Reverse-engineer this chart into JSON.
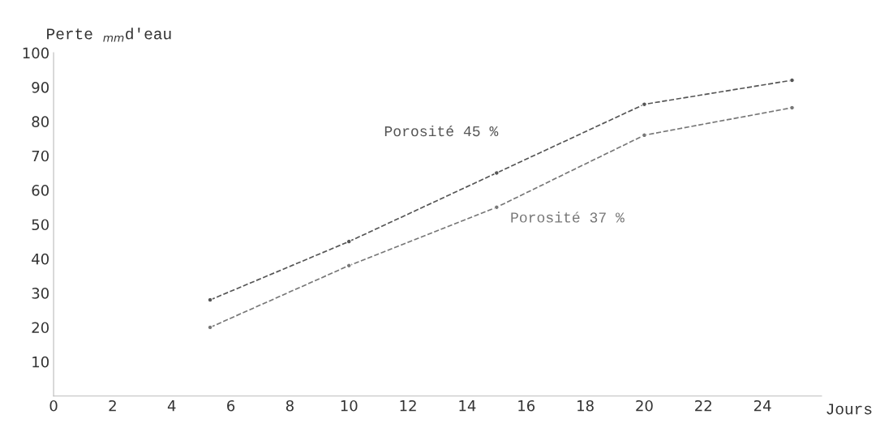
{
  "chart_data": {
    "type": "line",
    "ylabel": "Perte $_{mm}$d'eau",
    "xlabel": "Jours",
    "x": [
      5.3,
      10,
      15,
      20,
      25
    ],
    "series": [
      {
        "name": "Porosité 45 %",
        "color": "#555555",
        "values": [
          28,
          45,
          65,
          85,
          92
        ]
      },
      {
        "name": "Porosité 37 %",
        "color": "#777777",
        "values": [
          20,
          38,
          55,
          76,
          84
        ]
      }
    ],
    "xlim": [
      0,
      26
    ],
    "xticks": [
      0,
      2,
      4,
      6,
      8,
      10,
      12,
      14,
      16,
      18,
      20,
      22,
      24
    ],
    "ylim": [
      0,
      100
    ],
    "yticks": [
      10,
      20,
      30,
      40,
      50,
      60,
      70,
      80,
      90,
      100
    ],
    "grid": false,
    "legend": false,
    "marker": "circle",
    "line_style": "dashed"
  }
}
